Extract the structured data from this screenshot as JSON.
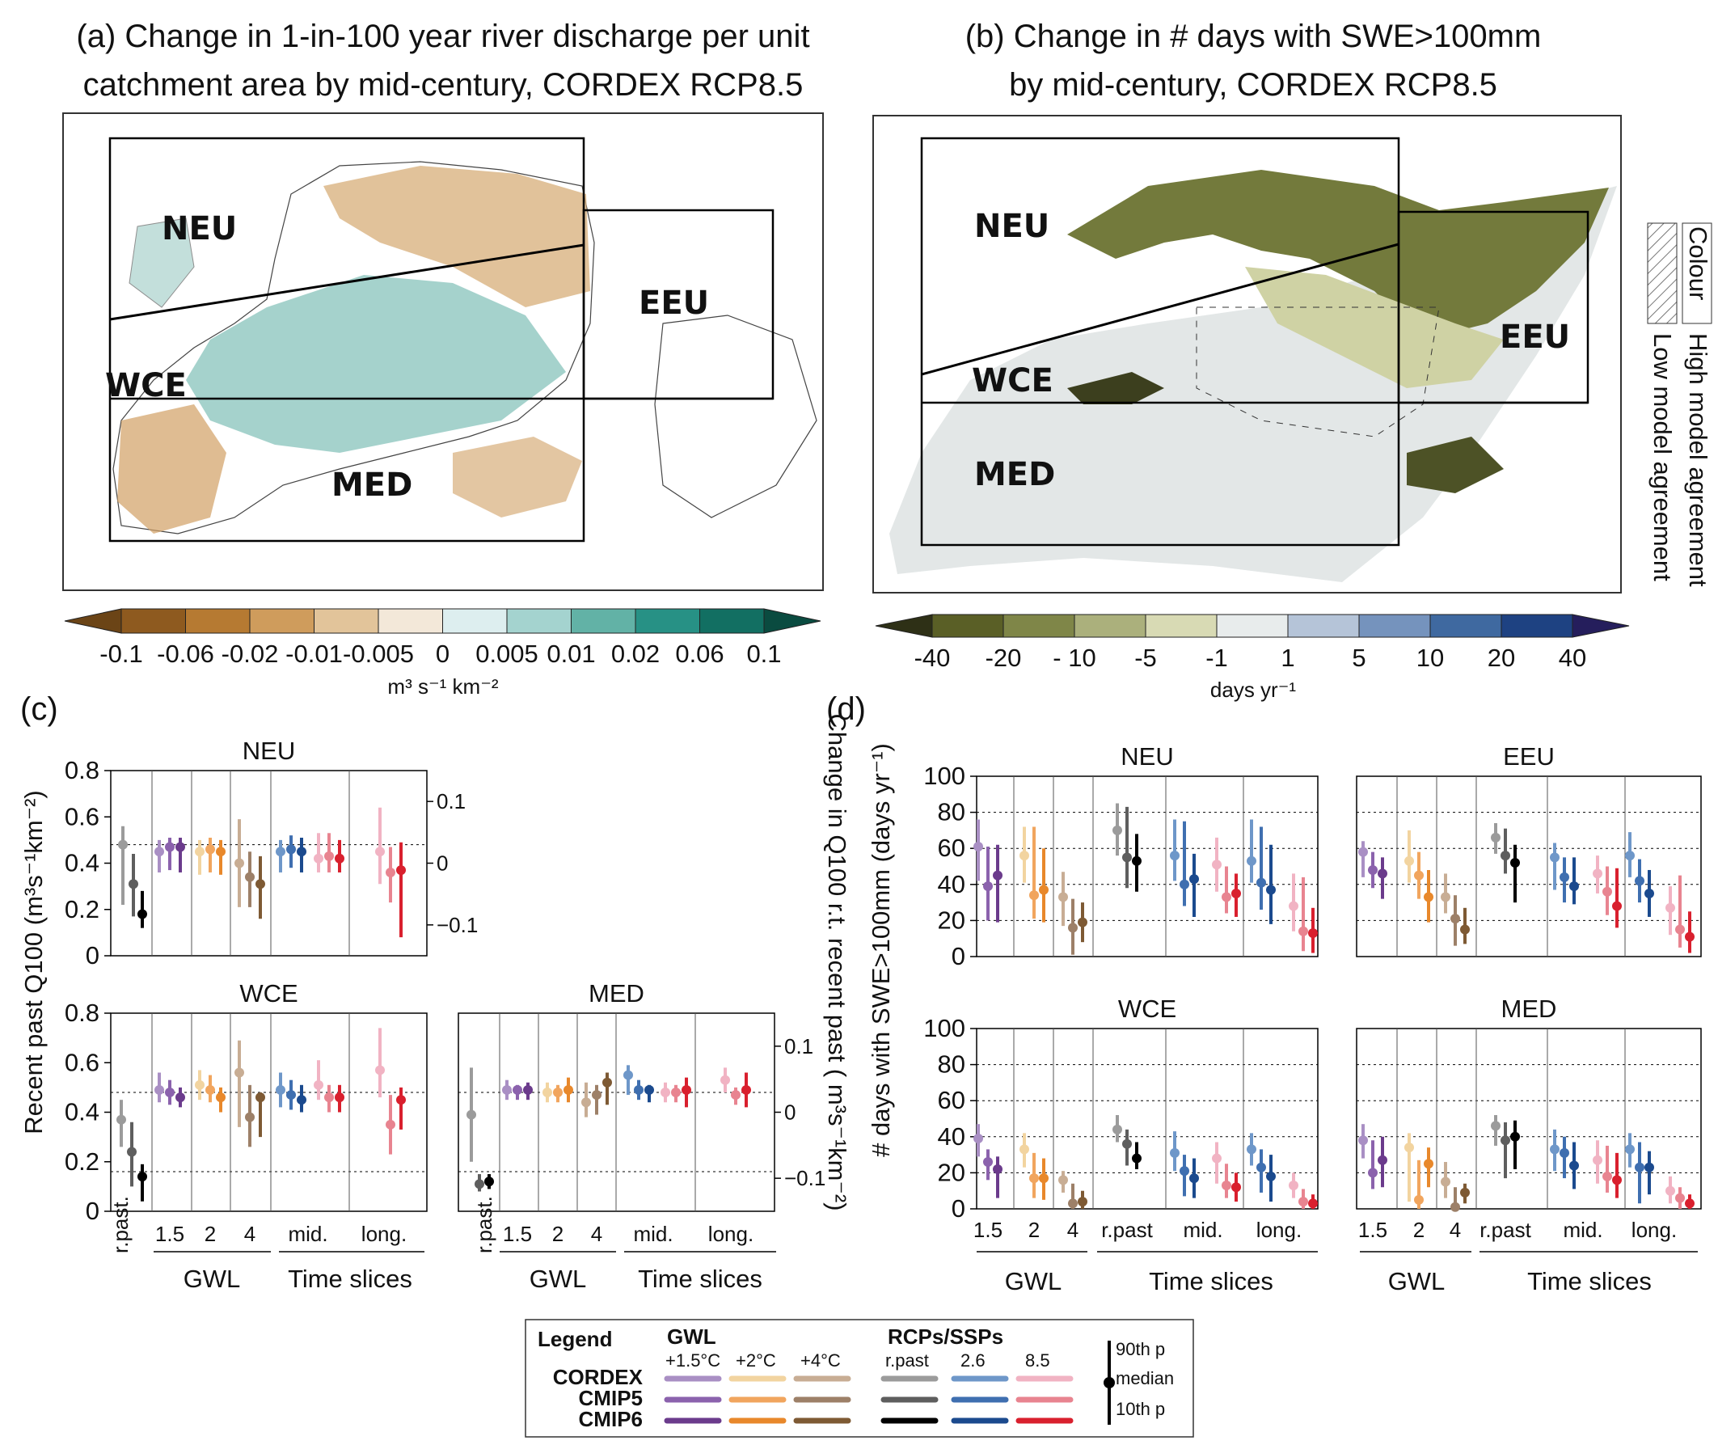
{
  "panel_a": {
    "title_line1": "(a) Change in 1-in-100 year river discharge per unit",
    "title_line2": "catchment area by mid-century, CORDEX RCP8.5",
    "regions": [
      "NEU",
      "EEU",
      "WCE",
      "MED"
    ],
    "colorbar": {
      "colors": [
        "#6b4416",
        "#8e5a1f",
        "#b67a32",
        "#cf9c5c",
        "#e2c49a",
        "#f3e8d9",
        "#ddeeef",
        "#a4d3cf",
        "#62b2a6",
        "#279185",
        "#126f62",
        "#0a4b40"
      ],
      "ticks": [
        "-0.1",
        "-0.06",
        "-0.02",
        "-0.01",
        "-0.005",
        "0",
        "0.005",
        "0.01",
        "0.02",
        "0.06",
        "0.1"
      ],
      "label": "m³ s⁻¹ km⁻²"
    }
  },
  "panel_b": {
    "title_line1": "(b) Change in # days with SWE>100mm",
    "title_line2": "by mid-century, CORDEX RCP8.5",
    "regions": [
      "NEU",
      "EEU",
      "WCE",
      "MED"
    ],
    "legend_colour": "Colour",
    "legend_high": "High model agreement",
    "legend_low": "Low model agreement",
    "colorbar": {
      "colors": [
        "#2e3016",
        "#5a5f26",
        "#7f8648",
        "#abb07c",
        "#d8dab4",
        "#e8ecec",
        "#b5c4d8",
        "#7593bd",
        "#3f69a0",
        "#1e4282",
        "#251e5c"
      ],
      "ticks": [
        "-40",
        "-20",
        "- 10",
        "-5",
        "-1",
        "1",
        "5",
        "10",
        "20",
        "40"
      ],
      "label": "days yr⁻¹"
    }
  },
  "panel_c": {
    "label": "(c)",
    "ylabel_left": "Recent past Q100 (m³s⁻¹km⁻²)",
    "ylabel_right": "Change in Q100 r.t. recent past ( m³s⁻¹km⁻²)",
    "group_gwl": "GWL",
    "group_time": "Time slices",
    "xticks": [
      "r.past.",
      "1.5",
      "2",
      "4",
      "mid.",
      "long."
    ],
    "left_yticks": [
      "0",
      "0.2",
      "0.4",
      "0.6",
      "0.8"
    ],
    "right_yticks": [
      "0.1",
      "0",
      "−0.1"
    ]
  },
  "panel_d": {
    "label": "(d)",
    "ylabel": "# days with SWE>100mm (days yr⁻¹)",
    "group_gwl": "GWL",
    "group_time": "Time slices",
    "xticks": [
      "1.5",
      "2",
      "4",
      "r.past",
      "mid.",
      "long."
    ],
    "yticks": [
      "0",
      "20",
      "40",
      "60",
      "80",
      "100"
    ]
  },
  "legend": {
    "title": "Legend",
    "gwl_header": "GWL",
    "rcp_header": "RCPs/SSPs",
    "columns": [
      "+1.5°C",
      "+2°C",
      "+4°C",
      "r.past",
      "2.6",
      "8.5"
    ],
    "rows": [
      "CORDEX",
      "CMIP5",
      "CMIP6"
    ],
    "colors": [
      [
        "#a98fc4",
        "#f2d4a0",
        "#c8ad94",
        "#9b9b9b",
        "#6e97c9",
        "#f1b3c3"
      ],
      [
        "#8b62ad",
        "#f1a55e",
        "#9d8068",
        "#5e5e5e",
        "#3f6fb0",
        "#e88490"
      ],
      [
        "#6b3b8c",
        "#e8882b",
        "#7e5a34",
        "#000000",
        "#1b4a8e",
        "#d9202e"
      ]
    ],
    "p90": "90th p",
    "median": "median",
    "p10": "10th p"
  },
  "chart_data": [
    {
      "type": "errorbar",
      "panel": "c",
      "title": "NEU",
      "ylim": [
        0,
        0.8
      ],
      "y2lim": [
        -0.15,
        0.15
      ],
      "rpast": [
        [
          0.48,
          0.56,
          0.22
        ],
        [
          0.31,
          0.44,
          0.17
        ],
        [
          0.18,
          0.28,
          0.12
        ]
      ],
      "groups": [
        [
          [
            0.45,
            0.5,
            0.36
          ],
          [
            0.47,
            0.51,
            0.37
          ],
          [
            0.47,
            0.51,
            0.36
          ]
        ],
        [
          [
            0.45,
            0.5,
            0.35
          ],
          [
            0.46,
            0.51,
            0.36
          ],
          [
            0.45,
            0.5,
            0.35
          ]
        ],
        [
          [
            0.4,
            0.59,
            0.21
          ],
          [
            0.34,
            0.45,
            0.21
          ],
          [
            0.31,
            0.43,
            0.16
          ]
        ],
        [
          [
            0.45,
            0.5,
            0.36
          ],
          [
            0.46,
            0.52,
            0.38
          ],
          [
            0.45,
            0.51,
            0.36
          ]
        ],
        [
          [
            0.42,
            0.53,
            0.36
          ],
          [
            0.43,
            0.53,
            0.36
          ],
          [
            0.42,
            0.5,
            0.36
          ]
        ],
        [
          [
            0.45,
            0.64,
            0.31
          ],
          [
            0.36,
            0.47,
            0.23
          ],
          [
            0.37,
            0.49,
            0.08
          ]
        ]
      ]
    },
    {
      "type": "errorbar",
      "panel": "c",
      "title": "WCE",
      "ylim": [
        0,
        0.8
      ],
      "y2lim": [
        -0.15,
        0.15
      ],
      "rpast": [
        [
          0.37,
          0.45,
          0.26
        ],
        [
          0.24,
          0.36,
          0.1
        ],
        [
          0.14,
          0.19,
          0.04
        ]
      ],
      "groups": [
        [
          [
            0.49,
            0.56,
            0.44
          ],
          [
            0.48,
            0.53,
            0.43
          ],
          [
            0.46,
            0.5,
            0.42
          ]
        ],
        [
          [
            0.51,
            0.57,
            0.45
          ],
          [
            0.49,
            0.55,
            0.44
          ],
          [
            0.46,
            0.5,
            0.4
          ]
        ],
        [
          [
            0.56,
            0.69,
            0.34
          ],
          [
            0.38,
            0.51,
            0.26
          ],
          [
            0.46,
            0.48,
            0.3
          ]
        ],
        [
          [
            0.49,
            0.56,
            0.42
          ],
          [
            0.47,
            0.53,
            0.41
          ],
          [
            0.45,
            0.51,
            0.4
          ]
        ],
        [
          [
            0.51,
            0.61,
            0.45
          ],
          [
            0.46,
            0.51,
            0.4
          ],
          [
            0.46,
            0.51,
            0.4
          ]
        ],
        [
          [
            0.57,
            0.74,
            0.46
          ],
          [
            0.35,
            0.47,
            0.23
          ],
          [
            0.45,
            0.5,
            0.33
          ]
        ]
      ]
    },
    {
      "type": "errorbar",
      "panel": "c",
      "title": "MED",
      "ylim": [
        0,
        0.8
      ],
      "y2lim": [
        -0.15,
        0.15
      ],
      "rpast": [
        [
          0.39,
          0.58,
          0.2
        ],
        [
          0.11,
          0.15,
          0.08
        ],
        [
          0.12,
          0.15,
          0.09
        ]
      ],
      "groups": [
        [
          [
            0.49,
            0.53,
            0.45
          ],
          [
            0.49,
            0.51,
            0.45
          ],
          [
            0.49,
            0.52,
            0.45
          ]
        ],
        [
          [
            0.48,
            0.52,
            0.44
          ],
          [
            0.48,
            0.51,
            0.44
          ],
          [
            0.49,
            0.54,
            0.44
          ]
        ],
        [
          [
            0.44,
            0.52,
            0.38
          ],
          [
            0.47,
            0.51,
            0.39
          ],
          [
            0.52,
            0.56,
            0.43
          ]
        ],
        [
          [
            0.55,
            0.59,
            0.47
          ],
          [
            0.49,
            0.53,
            0.45
          ],
          [
            0.49,
            0.51,
            0.44
          ]
        ],
        [
          [
            0.48,
            0.52,
            0.44
          ],
          [
            0.48,
            0.51,
            0.44
          ],
          [
            0.49,
            0.54,
            0.42
          ]
        ],
        [
          [
            0.53,
            0.58,
            0.48
          ],
          [
            0.47,
            0.5,
            0.43
          ],
          [
            0.49,
            0.56,
            0.42
          ]
        ]
      ]
    },
    {
      "type": "errorbar",
      "panel": "d",
      "title": "NEU",
      "ylim": [
        0,
        100
      ],
      "groups": [
        [
          [
            61,
            76,
            42
          ],
          [
            39,
            61,
            20
          ],
          [
            45,
            62,
            19
          ]
        ],
        [
          [
            56,
            72,
            41
          ],
          [
            34,
            72,
            21
          ],
          [
            37,
            60,
            19
          ]
        ],
        [
          [
            33,
            47,
            17
          ],
          [
            16,
            32,
            1
          ],
          [
            19,
            30,
            8
          ]
        ],
        [
          [
            70,
            85,
            56
          ],
          [
            55,
            83,
            38
          ],
          [
            53,
            68,
            36
          ]
        ],
        [
          [
            56,
            76,
            42
          ],
          [
            40,
            75,
            28
          ],
          [
            43,
            57,
            22
          ]
        ],
        [
          [
            51,
            66,
            36
          ],
          [
            33,
            50,
            24
          ],
          [
            35,
            46,
            22
          ]
        ],
        [
          [
            53,
            76,
            41
          ],
          [
            41,
            72,
            26
          ],
          [
            37,
            62,
            18
          ]
        ],
        [
          [
            28,
            46,
            14
          ],
          [
            14,
            44,
            3
          ],
          [
            13,
            27,
            2
          ]
        ]
      ]
    },
    {
      "type": "errorbar",
      "panel": "d",
      "title": "EEU",
      "ylim": [
        0,
        100
      ],
      "groups": [
        [
          [
            58,
            64,
            44
          ],
          [
            48,
            58,
            38
          ],
          [
            46,
            55,
            32
          ]
        ],
        [
          [
            53,
            70,
            41
          ],
          [
            45,
            58,
            32
          ],
          [
            33,
            48,
            19
          ]
        ],
        [
          [
            33,
            46,
            24
          ],
          [
            21,
            34,
            6
          ],
          [
            15,
            27,
            7
          ]
        ],
        [
          [
            66,
            74,
            57
          ],
          [
            56,
            71,
            46
          ],
          [
            52,
            62,
            30
          ]
        ],
        [
          [
            55,
            63,
            37
          ],
          [
            44,
            55,
            30
          ],
          [
            39,
            55,
            29
          ]
        ],
        [
          [
            46,
            56,
            35
          ],
          [
            36,
            50,
            23
          ],
          [
            28,
            49,
            16
          ]
        ],
        [
          [
            56,
            69,
            44
          ],
          [
            42,
            54,
            30
          ],
          [
            35,
            48,
            22
          ]
        ],
        [
          [
            27,
            39,
            12
          ],
          [
            15,
            45,
            5
          ],
          [
            11,
            25,
            2
          ]
        ]
      ]
    },
    {
      "type": "errorbar",
      "panel": "d",
      "title": "WCE",
      "ylim": [
        0,
        100
      ],
      "groups": [
        [
          [
            39,
            47,
            29
          ],
          [
            26,
            33,
            16
          ],
          [
            22,
            29,
            6
          ]
        ],
        [
          [
            33,
            42,
            23
          ],
          [
            17,
            31,
            6
          ],
          [
            17,
            28,
            5
          ]
        ],
        [
          [
            16,
            21,
            9
          ],
          [
            3,
            14,
            0
          ],
          [
            4,
            10,
            0
          ]
        ],
        [
          [
            44,
            52,
            37
          ],
          [
            36,
            44,
            24
          ],
          [
            28,
            37,
            22
          ]
        ],
        [
          [
            31,
            43,
            21
          ],
          [
            21,
            30,
            7
          ],
          [
            17,
            28,
            6
          ]
        ],
        [
          [
            28,
            37,
            14
          ],
          [
            13,
            25,
            6
          ],
          [
            12,
            20,
            4
          ]
        ],
        [
          [
            33,
            42,
            24
          ],
          [
            23,
            33,
            9
          ],
          [
            18,
            30,
            4
          ]
        ],
        [
          [
            13,
            20,
            6
          ],
          [
            4,
            11,
            0
          ],
          [
            3,
            8,
            0
          ]
        ]
      ]
    },
    {
      "type": "errorbar",
      "panel": "d",
      "title": "MED",
      "ylim": [
        0,
        100
      ],
      "groups": [
        [
          [
            38,
            47,
            28
          ],
          [
            20,
            38,
            11
          ],
          [
            27,
            40,
            12
          ]
        ],
        [
          [
            34,
            42,
            4
          ],
          [
            5,
            27,
            0
          ],
          [
            25,
            34,
            12
          ]
        ],
        [
          [
            15,
            26,
            6
          ],
          [
            1,
            12,
            0
          ],
          [
            9,
            14,
            3
          ]
        ],
        [
          [
            46,
            52,
            35
          ],
          [
            38,
            48,
            17
          ],
          [
            40,
            49,
            22
          ]
        ],
        [
          [
            33,
            44,
            21
          ],
          [
            31,
            40,
            17
          ],
          [
            24,
            37,
            11
          ]
        ],
        [
          [
            27,
            38,
            14
          ],
          [
            18,
            35,
            9
          ],
          [
            16,
            31,
            6
          ]
        ],
        [
          [
            33,
            42,
            23
          ],
          [
            23,
            37,
            3
          ],
          [
            23,
            32,
            8
          ]
        ],
        [
          [
            10,
            18,
            3
          ],
          [
            6,
            12,
            0
          ],
          [
            3,
            8,
            0
          ]
        ]
      ]
    }
  ]
}
